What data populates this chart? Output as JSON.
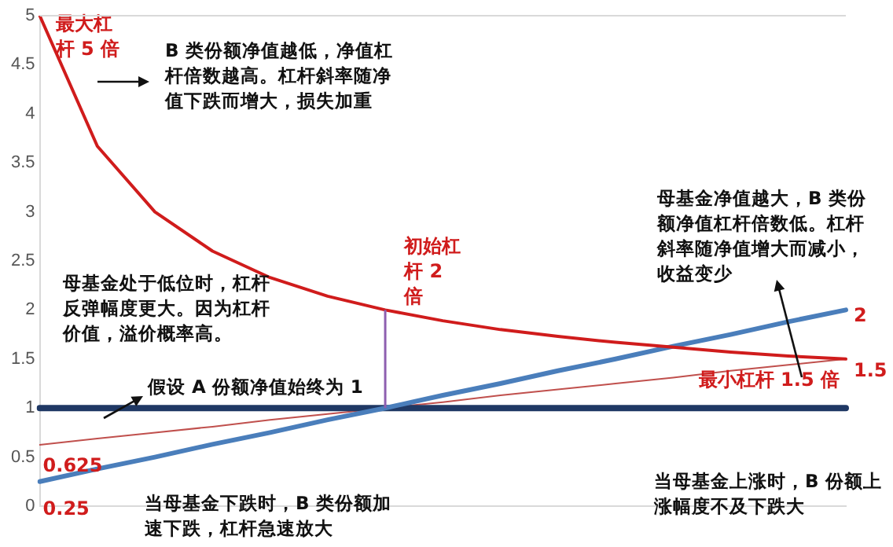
{
  "chart_data": {
    "type": "line",
    "categories": [
      null,
      null,
      null,
      null,
      null,
      null,
      null,
      null,
      null,
      null,
      null,
      null,
      null,
      null,
      null
    ],
    "ylim": [
      0,
      5
    ],
    "yticks": [
      0,
      0.5,
      1,
      1.5,
      2,
      2.5,
      3,
      3.5,
      4,
      4.5,
      5
    ],
    "tick_labels": "y",
    "grid": false,
    "legend": false,
    "marker": "none",
    "series": [
      {
        "color": "#d01c1c",
        "values": [
          5,
          3.67,
          3,
          2.6,
          2.33,
          2.14,
          2,
          1.89,
          1.8,
          1.73,
          1.67,
          1.62,
          1.57,
          1.53,
          1.5
        ],
        "value_labels": [
          "最大杠杆 5 倍",
          null,
          null,
          null,
          null,
          null,
          "初始杠杆 2 倍",
          null,
          null,
          null,
          null,
          null,
          null,
          null,
          "最小杠杆 1.5 倍"
        ]
      },
      {
        "color": "#4a7ebb",
        "values": [
          0.25,
          0.38,
          0.5,
          0.63,
          0.75,
          0.88,
          1,
          1.13,
          1.25,
          1.38,
          1.5,
          1.63,
          1.75,
          1.88,
          2
        ],
        "value_labels": [
          "0.25",
          null,
          null,
          null,
          null,
          null,
          null,
          null,
          null,
          null,
          null,
          null,
          null,
          null,
          "2"
        ]
      },
      {
        "color": "#1f3864",
        "values": [
          1,
          1,
          1,
          1,
          1,
          1,
          1,
          1,
          1,
          1,
          1,
          1,
          1,
          1,
          1
        ]
      },
      {
        "color": "#c0504d",
        "values": [
          0.625,
          0.69,
          0.75,
          0.81,
          0.88,
          0.94,
          1,
          1.06,
          1.13,
          1.19,
          1.25,
          1.31,
          1.38,
          1.44,
          1.5
        ],
        "value_labels": [
          "0.625",
          null,
          null,
          null,
          null,
          null,
          null,
          null,
          null,
          null,
          null,
          null,
          null,
          null,
          "1.5"
        ]
      }
    ],
    "annotations": [
      "B 类份额净值越低，净值杠杆倍数越高。杠杆斜率随净值下跌而增大，损失加重",
      "母基金净值越大，B 类份额净值杠杆倍数低。杠杆斜率随净值增大而减小，收益变少",
      "母基金处于低位时，杠杆反弹幅度更大。因为杠杆价值，溢价概率高。",
      "假设 A 份额净值始终为 1",
      "当母基金下跌时，B 类份额加速下跌，杠杆急速放大",
      "当母基金上涨时，B 份额上涨幅度不及下跌大"
    ]
  }
}
